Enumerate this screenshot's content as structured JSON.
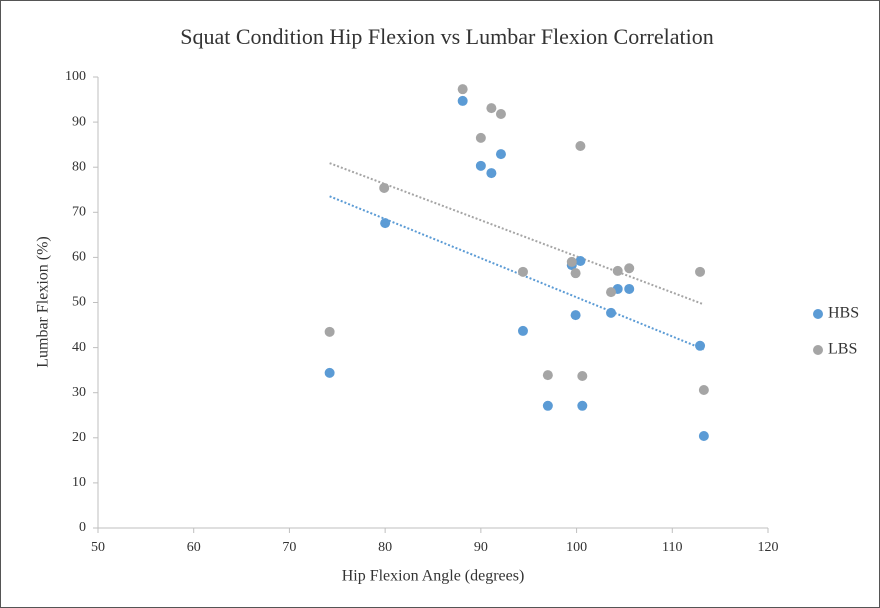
{
  "chart_data": {
    "type": "scatter",
    "title": "Squat Condition Hip Flexion vs Lumbar Flexion Correlation",
    "x_label": "Hip Flexion Angle (degrees)",
    "y_label": "Lumbar Flexion (%)",
    "xlim": [
      50,
      120
    ],
    "xticks": [
      50,
      60,
      70,
      80,
      90,
      100,
      110,
      120
    ],
    "ylim": [
      0,
      100
    ],
    "yticks": [
      0,
      10,
      20,
      30,
      40,
      50,
      60,
      70,
      80,
      90,
      100
    ],
    "grid": false,
    "trendline": true,
    "legend": "right",
    "series": [
      {
        "name": "HBS",
        "color": "#5b9bd5",
        "x": [
          74.2,
          80,
          88.1,
          90.0,
          91.1,
          92.1,
          94.4,
          97.0,
          99.5,
          100.4,
          99.9,
          100.6,
          103.6,
          104.3,
          105.5,
          112.9,
          113.3
        ],
        "values": [
          34.4,
          67.6,
          94.7,
          80.3,
          78.7,
          82.9,
          43.7,
          27.1,
          58.3,
          59.2,
          47.2,
          27.1,
          47.7,
          53.0,
          53.0,
          40.4,
          20.4
        ]
      },
      {
        "name": "LBS",
        "color": "#a5a5a5",
        "x": [
          74.2,
          79.9,
          88.1,
          90.0,
          91.1,
          92.1,
          94.4,
          97.0,
          99.5,
          99.9,
          100.4,
          100.6,
          103.6,
          104.3,
          105.5,
          112.9,
          113.3
        ],
        "values": [
          43.5,
          75.4,
          97.3,
          86.5,
          93.1,
          91.8,
          56.8,
          33.9,
          59.0,
          56.5,
          84.7,
          33.7,
          52.3,
          57.0,
          57.6,
          56.8,
          30.6
        ]
      }
    ]
  }
}
